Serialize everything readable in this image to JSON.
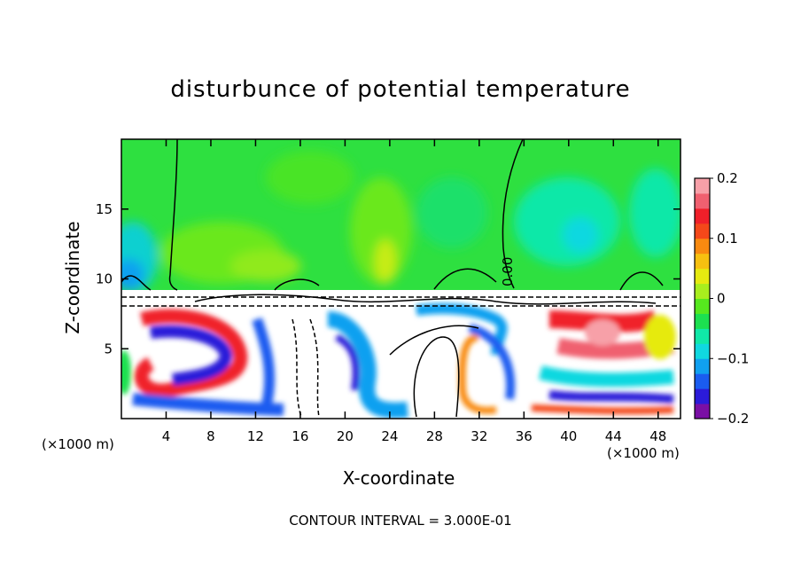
{
  "chart_data": {
    "type": "heatmap",
    "title": "disturbunce of potential temperature",
    "xlabel": "X-coordinate",
    "ylabel": "Z-coordinate",
    "x_units": "(×1000 m)",
    "footer": "CONTOUR INTERVAL = 3.000E-01",
    "contour_label": "0.00",
    "xlim": [
      0,
      50
    ],
    "ylim": [
      0,
      20
    ],
    "x_ticks": [
      4,
      8,
      12,
      16,
      20,
      24,
      28,
      32,
      36,
      40,
      44,
      48
    ],
    "y_ticks": [
      5,
      10,
      15
    ],
    "colorbar": {
      "range": [
        -0.2,
        0.2
      ],
      "tick_values": [
        0.2,
        0.1,
        0,
        -0.1,
        -0.2
      ],
      "tick_labels": [
        "0.2",
        "0.1",
        "0",
        "−0.1",
        "−0.2"
      ],
      "colors": [
        "#7a0fa5",
        "#2b1bd9",
        "#1a5cf0",
        "#10a0f0",
        "#10d8e0",
        "#10e8a8",
        "#1ce050",
        "#56e81e",
        "#a8ee1e",
        "#e6ea10",
        "#f6c010",
        "#f88a10",
        "#f4481a",
        "#f0202a",
        "#f06070",
        "#f7a0a8"
      ]
    }
  }
}
